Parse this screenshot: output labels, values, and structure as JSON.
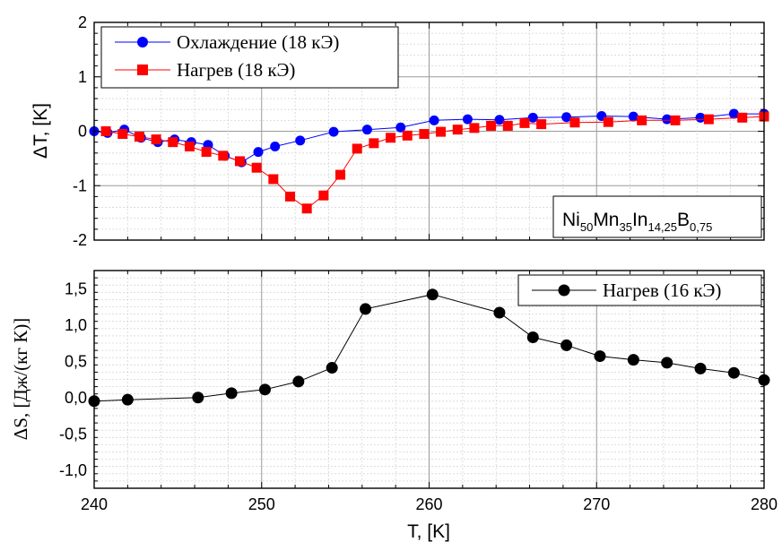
{
  "chart_data": [
    {
      "type": "line",
      "xlabel": "",
      "ylabel": "ΔT, [K]",
      "xlim": [
        240,
        280
      ],
      "ylim": [
        -2,
        2
      ],
      "yticks": [
        "-2",
        "-1",
        "0",
        "1",
        "2"
      ],
      "grid": true,
      "legend_position": "top-left",
      "annotation": {
        "base": [
          "Ni",
          "Mn",
          "In",
          "B"
        ],
        "sub": [
          "50",
          "35",
          "14,25",
          "0,75"
        ]
      },
      "series": [
        {
          "name": "Охлаждение (18 кЭ)",
          "color": "#0000ff",
          "marker": "circle",
          "x": [
            240.0,
            240.8,
            241.8,
            242.8,
            243.8,
            244.8,
            245.8,
            246.8,
            247.8,
            248.8,
            249.8,
            250.8,
            252.3,
            254.3,
            256.3,
            258.3,
            260.3,
            262.3,
            264.2,
            266.2,
            268.2,
            270.3,
            272.2,
            274.2,
            276.2,
            278.2,
            280.0
          ],
          "y": [
            0.0,
            -0.03,
            0.03,
            -0.12,
            -0.2,
            -0.15,
            -0.2,
            -0.25,
            -0.45,
            -0.57,
            -0.38,
            -0.28,
            -0.17,
            -0.01,
            0.03,
            0.07,
            0.2,
            0.22,
            0.21,
            0.25,
            0.26,
            0.28,
            0.27,
            0.22,
            0.25,
            0.32,
            0.32
          ]
        },
        {
          "name": "Нагрев (18 кЭ)",
          "color": "#ff0000",
          "marker": "square",
          "x": [
            240.7,
            241.7,
            242.7,
            243.7,
            244.7,
            245.7,
            246.7,
            247.7,
            248.7,
            249.7,
            250.7,
            251.7,
            252.7,
            253.7,
            254.7,
            255.7,
            256.7,
            257.7,
            258.7,
            259.7,
            260.7,
            261.7,
            262.7,
            263.7,
            264.7,
            265.7,
            266.7,
            268.7,
            270.7,
            272.7,
            274.7,
            276.7,
            278.7,
            280.0
          ],
          "y": [
            0.0,
            -0.05,
            -0.1,
            -0.15,
            -0.2,
            -0.28,
            -0.38,
            -0.45,
            -0.55,
            -0.67,
            -0.88,
            -1.2,
            -1.42,
            -1.18,
            -0.8,
            -0.32,
            -0.22,
            -0.12,
            -0.08,
            -0.05,
            -0.01,
            0.03,
            0.06,
            0.1,
            0.1,
            0.15,
            0.13,
            0.16,
            0.17,
            0.2,
            0.2,
            0.22,
            0.25,
            0.27
          ]
        }
      ]
    },
    {
      "type": "line",
      "xlabel": "T, [K]",
      "ylabel": "ΔS, [Дж/(кг  К)]",
      "xlim": [
        240,
        280
      ],
      "ylim": [
        -1.25,
        1.75
      ],
      "xticks": [
        "240",
        "250",
        "260",
        "270",
        "280"
      ],
      "yticks": [
        "-1,0",
        "-0,5",
        "0,0",
        "0,5",
        "1,0",
        "1,5"
      ],
      "grid": true,
      "legend_position": "top-right",
      "series": [
        {
          "name": "Нагрев (16 кЭ)",
          "color": "#000000",
          "marker": "circle",
          "x": [
            240.0,
            242.0,
            246.2,
            248.2,
            250.2,
            252.2,
            254.2,
            256.2,
            260.2,
            264.2,
            266.2,
            268.2,
            270.2,
            272.2,
            274.2,
            276.2,
            278.2,
            280.0
          ],
          "y": [
            -0.05,
            -0.03,
            0.0,
            0.06,
            0.11,
            0.22,
            0.41,
            1.22,
            1.42,
            1.17,
            0.83,
            0.72,
            0.57,
            0.52,
            0.48,
            0.4,
            0.34,
            0.24
          ]
        }
      ]
    }
  ]
}
